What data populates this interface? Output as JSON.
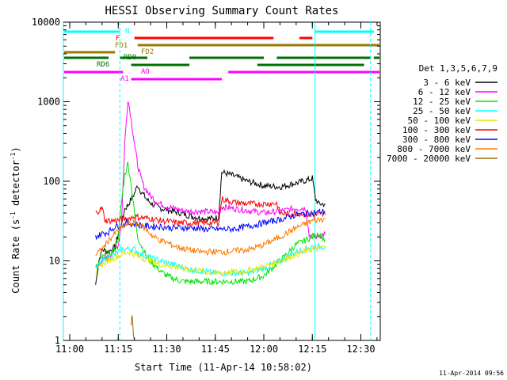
{
  "chart_data": {
    "type": "line",
    "title": "HESSI Observing Summary Count Rates",
    "xlabel": "Start Time (11-Apr-14 10:58:02)",
    "ylabel_main": "Count Rate (s",
    "ylabel_exp1": "-1",
    "ylabel_mid": " detector",
    "ylabel_exp2": "-1",
    "ylabel_end": ")",
    "footer_timestamp": "11-Apr-2014 09:56",
    "yscale": "log",
    "ylim": [
      1,
      10000
    ],
    "xlim": [
      "10:58:02",
      "12:36:00"
    ],
    "x_ticks": [
      "11:00",
      "11:15",
      "11:30",
      "11:45",
      "12:00",
      "12:15",
      "12:30"
    ],
    "y_ticks": [
      "1",
      "10",
      "100",
      "1000",
      "10000"
    ],
    "legend": {
      "header": "Det 1,3,5,6,7,9",
      "placement": "right"
    },
    "series": [
      {
        "name": "3 - 6 keV",
        "color": "#000000",
        "points": [
          [
            "11:08",
            5
          ],
          [
            "11:09",
            10
          ],
          [
            "11:10",
            14
          ],
          [
            "11:12",
            13
          ],
          [
            "11:14",
            15
          ],
          [
            "11:15",
            22
          ],
          [
            "11:16",
            30
          ],
          [
            "11:17",
            45
          ],
          [
            "11:18",
            50
          ],
          [
            "11:19",
            60
          ],
          [
            "11:20",
            70
          ],
          [
            "11:21",
            90
          ],
          [
            "11:22",
            75
          ],
          [
            "11:24",
            58
          ],
          [
            "11:26",
            50
          ],
          [
            "11:28",
            46
          ],
          [
            "11:30",
            44
          ],
          [
            "11:32",
            42
          ],
          [
            "11:34",
            40
          ],
          [
            "11:36",
            38
          ],
          [
            "11:38",
            36
          ],
          [
            "11:40",
            35
          ],
          [
            "11:42",
            34
          ],
          [
            "11:44",
            34
          ],
          [
            "11:46",
            35
          ],
          [
            "11:47",
            130
          ],
          [
            "11:50",
            120
          ],
          [
            "11:55",
            100
          ],
          [
            "12:00",
            88
          ],
          [
            "12:05",
            85
          ],
          [
            "12:10",
            95
          ],
          [
            "12:14",
            105
          ],
          [
            "12:15",
            110
          ],
          [
            "12:16",
            60
          ],
          [
            "12:17",
            52
          ],
          [
            "12:19",
            52
          ]
        ]
      },
      {
        "name": "6 - 12 keV",
        "color": "#ff00ff",
        "points": [
          [
            "11:08",
            8
          ],
          [
            "11:10",
            10
          ],
          [
            "11:12",
            11
          ],
          [
            "11:14",
            14
          ],
          [
            "11:15",
            16
          ],
          [
            "11:16",
            30
          ],
          [
            "11:17",
            300
          ],
          [
            "11:18",
            1100
          ],
          [
            "11:19",
            600
          ],
          [
            "11:20",
            300
          ],
          [
            "11:21",
            160
          ],
          [
            "11:22",
            110
          ],
          [
            "11:23",
            85
          ],
          [
            "11:25",
            65
          ],
          [
            "11:27",
            55
          ],
          [
            "11:30",
            48
          ],
          [
            "11:33",
            45
          ],
          [
            "11:36",
            42
          ],
          [
            "11:40",
            42
          ],
          [
            "11:44",
            41
          ],
          [
            "11:46",
            40
          ],
          [
            "11:47",
            48
          ],
          [
            "11:50",
            46
          ],
          [
            "11:55",
            43
          ],
          [
            "12:00",
            40
          ],
          [
            "12:05",
            42
          ],
          [
            "12:10",
            46
          ],
          [
            "12:13",
            46
          ],
          [
            "12:14",
            21
          ],
          [
            "12:16",
            20
          ],
          [
            "12:19",
            22
          ]
        ]
      },
      {
        "name": "12 - 25 keV",
        "color": "#00e400",
        "points": [
          [
            "11:08",
            8
          ],
          [
            "11:10",
            11
          ],
          [
            "11:12",
            12
          ],
          [
            "11:14",
            14
          ],
          [
            "11:15",
            20
          ],
          [
            "11:16",
            55
          ],
          [
            "11:17",
            120
          ],
          [
            "11:18",
            170
          ],
          [
            "11:19",
            90
          ],
          [
            "11:20",
            40
          ],
          [
            "11:21",
            20
          ],
          [
            "11:22",
            16
          ],
          [
            "11:24",
            11
          ],
          [
            "11:26",
            9
          ],
          [
            "11:28",
            7.5
          ],
          [
            "11:30",
            6.5
          ],
          [
            "11:32",
            6
          ],
          [
            "11:35",
            5.5
          ],
          [
            "11:40",
            5.5
          ],
          [
            "11:45",
            5.5
          ],
          [
            "11:50",
            5.5
          ],
          [
            "11:55",
            5.5
          ],
          [
            "12:00",
            6.5
          ],
          [
            "12:05",
            10
          ],
          [
            "12:10",
            16
          ],
          [
            "12:15",
            20
          ],
          [
            "12:17",
            22
          ],
          [
            "12:19",
            18
          ]
        ]
      },
      {
        "name": "25 - 50 keV",
        "color": "#00ffff",
        "points": [
          [
            "11:08",
            8
          ],
          [
            "11:10",
            10
          ],
          [
            "11:12",
            11
          ],
          [
            "11:14",
            12
          ],
          [
            "11:16",
            14
          ],
          [
            "11:18",
            14
          ],
          [
            "11:20",
            14
          ],
          [
            "11:22",
            12
          ],
          [
            "11:25",
            11
          ],
          [
            "11:28",
            10
          ],
          [
            "11:32",
            9
          ],
          [
            "11:36",
            8
          ],
          [
            "11:40",
            7.5
          ],
          [
            "11:45",
            7
          ],
          [
            "11:50",
            7
          ],
          [
            "11:55",
            7
          ],
          [
            "12:00",
            8
          ],
          [
            "12:05",
            10
          ],
          [
            "12:10",
            13
          ],
          [
            "12:15",
            15
          ],
          [
            "12:19",
            15
          ]
        ]
      },
      {
        "name": "50 - 100 keV",
        "color": "#e6e600",
        "points": [
          [
            "11:08",
            7
          ],
          [
            "11:10",
            9
          ],
          [
            "11:12",
            10
          ],
          [
            "11:14",
            11
          ],
          [
            "11:16",
            12
          ],
          [
            "11:18",
            13
          ],
          [
            "11:20",
            12
          ],
          [
            "11:22",
            11
          ],
          [
            "11:25",
            10
          ],
          [
            "11:28",
            9
          ],
          [
            "11:32",
            8.5
          ],
          [
            "11:36",
            8
          ],
          [
            "11:40",
            7.5
          ],
          [
            "11:45",
            7
          ],
          [
            "11:50",
            7.2
          ],
          [
            "11:55",
            7.5
          ],
          [
            "12:00",
            8.5
          ],
          [
            "12:05",
            10
          ],
          [
            "12:10",
            12
          ],
          [
            "12:15",
            14
          ],
          [
            "12:19",
            15
          ]
        ]
      },
      {
        "name": "100 - 300 keV",
        "color": "#ff0000",
        "points": [
          [
            "11:08",
            40
          ],
          [
            "11:09",
            43
          ],
          [
            "11:10",
            46
          ],
          [
            "11:11",
            32
          ],
          [
            "11:14",
            32
          ],
          [
            "11:16",
            33
          ],
          [
            "11:18",
            34
          ],
          [
            "11:20",
            36
          ],
          [
            "11:22",
            35
          ],
          [
            "11:25",
            34
          ],
          [
            "11:28",
            32
          ],
          [
            "11:31",
            31
          ],
          [
            "11:33",
            30
          ],
          [
            "11:36",
            30
          ],
          [
            "11:40",
            30
          ],
          [
            "11:44",
            30
          ],
          [
            "11:46",
            30
          ],
          [
            "11:47",
            60
          ],
          [
            "11:50",
            55
          ],
          [
            "11:55",
            52
          ],
          [
            "12:00",
            52
          ],
          [
            "12:04",
            53
          ],
          [
            "12:05",
            40
          ],
          [
            "12:08",
            38
          ],
          [
            "12:10",
            40
          ],
          [
            "12:14",
            38
          ],
          [
            "12:19",
            38
          ]
        ]
      },
      {
        "name": "300 - 800 keV",
        "color": "#0000ff",
        "points": [
          [
            "11:08",
            20
          ],
          [
            "11:10",
            22
          ],
          [
            "11:12",
            23
          ],
          [
            "11:14",
            27
          ],
          [
            "11:16",
            28
          ],
          [
            "11:18",
            30
          ],
          [
            "11:20",
            29
          ],
          [
            "11:22",
            28
          ],
          [
            "11:25",
            27
          ],
          [
            "11:28",
            27
          ],
          [
            "11:31",
            26
          ],
          [
            "11:34",
            26
          ],
          [
            "11:38",
            26
          ],
          [
            "11:42",
            25
          ],
          [
            "11:46",
            25
          ],
          [
            "11:50",
            25
          ],
          [
            "11:55",
            27
          ],
          [
            "12:00",
            30
          ],
          [
            "12:05",
            33
          ],
          [
            "12:10",
            38
          ],
          [
            "12:15",
            40
          ],
          [
            "12:19",
            42
          ]
        ]
      },
      {
        "name": "800 - 7000 keV",
        "color": "#ff7800",
        "points": [
          [
            "11:08",
            12
          ],
          [
            "11:10",
            14
          ],
          [
            "11:12",
            18
          ],
          [
            "11:14",
            22
          ],
          [
            "11:16",
            26
          ],
          [
            "11:18",
            29
          ],
          [
            "11:20",
            30
          ],
          [
            "11:22",
            28
          ],
          [
            "11:24",
            24
          ],
          [
            "11:26",
            20
          ],
          [
            "11:28",
            18
          ],
          [
            "11:30",
            17
          ],
          [
            "11:33",
            15
          ],
          [
            "11:36",
            14
          ],
          [
            "11:40",
            13
          ],
          [
            "11:44",
            13
          ],
          [
            "11:48",
            13
          ],
          [
            "11:52",
            13.5
          ],
          [
            "11:56",
            14
          ],
          [
            "12:00",
            16
          ],
          [
            "12:05",
            20
          ],
          [
            "12:10",
            26
          ],
          [
            "12:15",
            32
          ],
          [
            "12:19",
            34
          ]
        ]
      },
      {
        "name": "7000 - 20000 keV",
        "color": "#9a6a00",
        "points": [
          [
            "11:19",
            1.5
          ],
          [
            "11:19.3",
            2.2
          ],
          [
            "11:19.6",
            1.3
          ],
          [
            "11:19.9",
            1.05
          ]
        ]
      }
    ],
    "flag_bars": [
      {
        "label": "N",
        "color": "#00ffff",
        "segments": [
          [
            "10:58:02",
            "11:15:30"
          ],
          [
            "12:15:50",
            "12:34:00"
          ]
        ]
      },
      {
        "label": "F",
        "color": "#ff0000",
        "segments": [
          [
            "11:20:00",
            "12:03:00"
          ],
          [
            "12:11:00",
            "12:15:00"
          ]
        ]
      },
      {
        "label": "FD1",
        "color": "#9a7a00",
        "segments": [
          [
            "11:21:00",
            "12:36:00"
          ]
        ]
      },
      {
        "label": "FD2",
        "color": "#9a7a00",
        "segments": [
          [
            "10:58:02",
            "11:14:00"
          ]
        ]
      },
      {
        "label": "RD0",
        "color": "#007000",
        "segments": [
          [
            "10:58:02",
            "11:12:00"
          ],
          [
            "11:15:30",
            "11:24:00"
          ],
          [
            "11:37:00",
            "12:00:00"
          ],
          [
            "12:04:00",
            "12:33:00"
          ],
          [
            "12:34:00",
            "12:36:00"
          ]
        ]
      },
      {
        "label": "RD6",
        "color": "#007000",
        "segments": [
          [
            "11:19:00",
            "11:37:00"
          ],
          [
            "11:58:00",
            "12:31:00"
          ]
        ]
      },
      {
        "label": "AO",
        "color": "#ff00ff",
        "segments": [
          [
            "10:58:02",
            "11:16:30"
          ],
          [
            "11:49:00",
            "12:36:00"
          ]
        ]
      },
      {
        "label": "A1",
        "color": "#ff00ff",
        "segments": [
          [
            "11:19:00",
            "11:47:00"
          ]
        ]
      }
    ],
    "vertical_lines": [
      {
        "time": "10:58:02",
        "color": "#00ffff",
        "style": "solid"
      },
      {
        "time": "11:15:30",
        "color": "#00ffff",
        "style": "dashed"
      },
      {
        "time": "12:15:50",
        "color": "#00ffff",
        "style": "solid"
      },
      {
        "time": "12:33:00",
        "color": "#00ffff",
        "style": "dashed"
      }
    ]
  }
}
